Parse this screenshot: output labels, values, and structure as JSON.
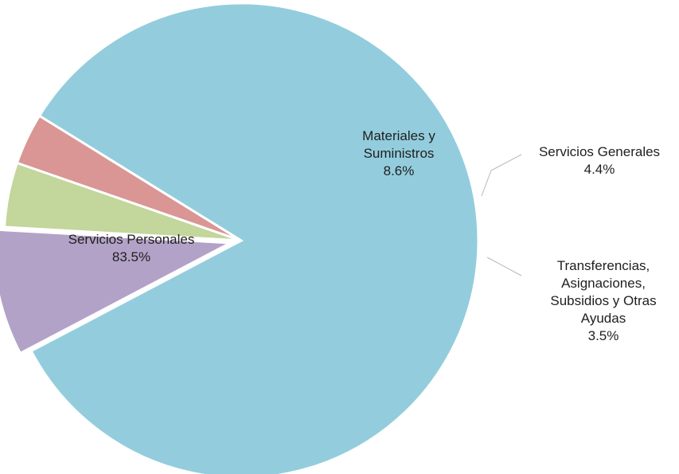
{
  "chart_data": {
    "type": "pie",
    "title": "",
    "slices": [
      {
        "name": "Servicios Personales",
        "value": 83.5,
        "label_lines": [
          "Servicios  Personales",
          "83.5%"
        ],
        "color": "#93CDDD"
      },
      {
        "name": "Materiales y Suministros",
        "value": 8.6,
        "label_lines": [
          "Materiales  y",
          "Suministros",
          "8.6%"
        ],
        "color": "#B3A2C7"
      },
      {
        "name": "Servicios Generales",
        "value": 4.4,
        "label_lines": [
          "Servicios  Generales",
          "4.4%"
        ],
        "color": "#C3D69B"
      },
      {
        "name": "Transferencias, Asignaciones, Subsidios y Otras Ayudas",
        "value": 3.5,
        "label_lines": [
          "Transferencias,",
          "Asignaciones,",
          "Subsidios  y  Otras",
          "Ayudas",
          "3.5%"
        ],
        "color": "#D99694"
      }
    ],
    "legend": "none",
    "label_position": "slices and outside with leader lines"
  }
}
